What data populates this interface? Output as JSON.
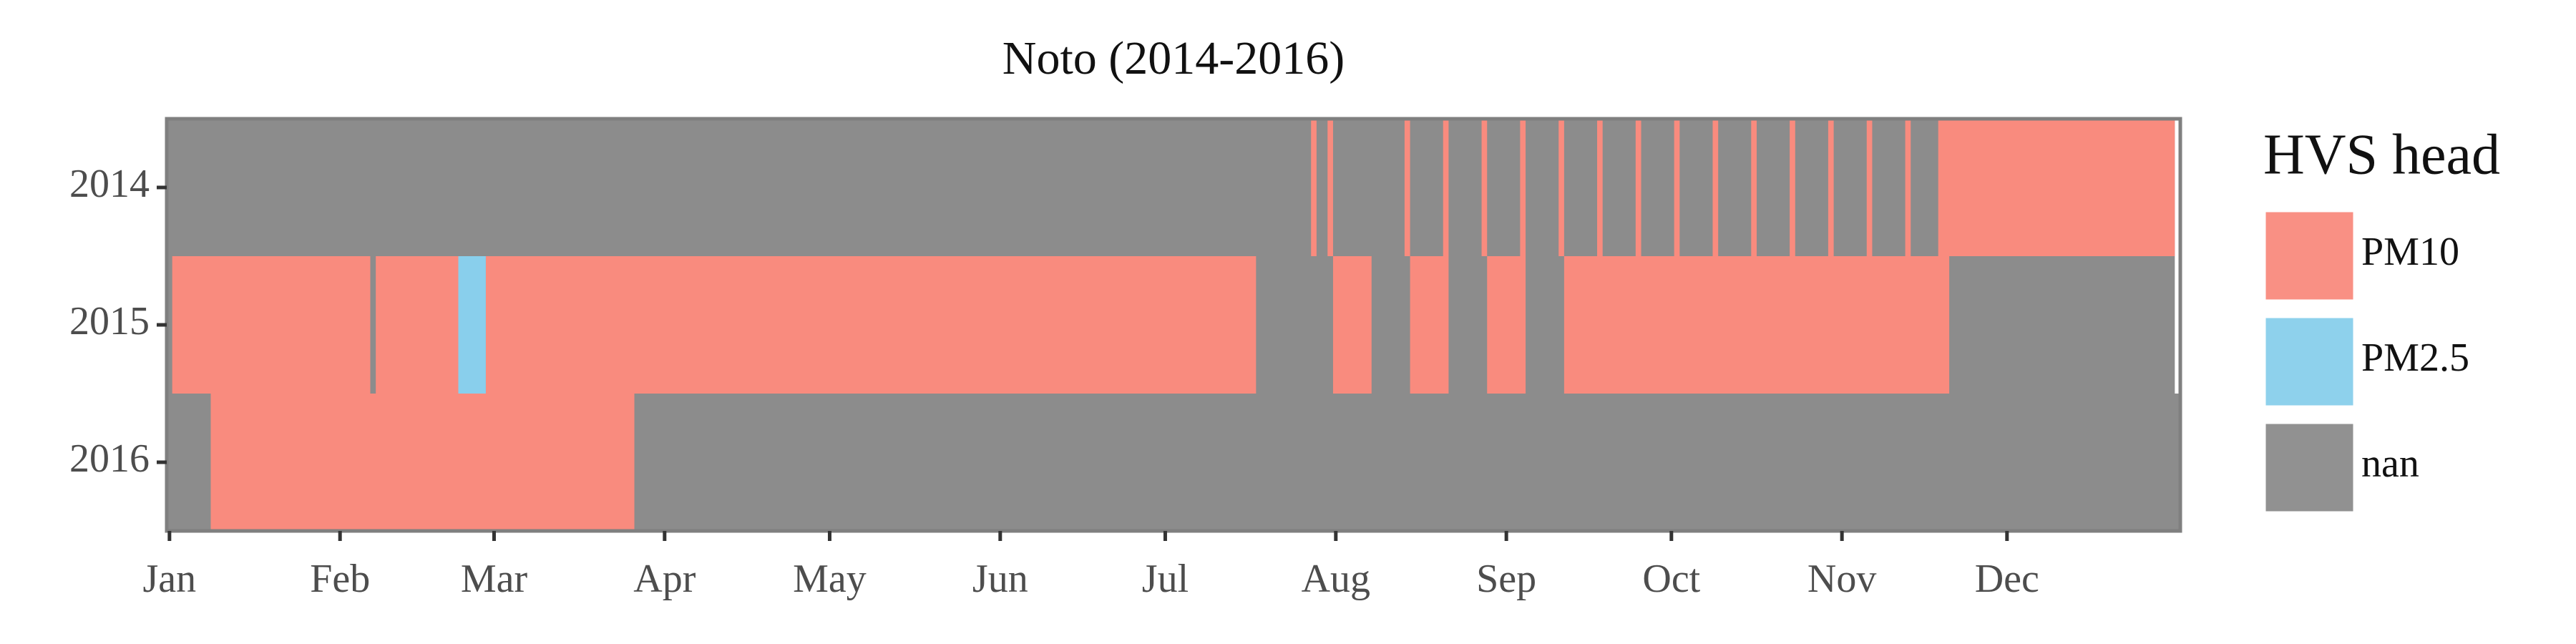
{
  "chart_data": {
    "type": "timeline",
    "title": "Noto (2014-2016)",
    "categories": [
      "2014",
      "2015",
      "2016"
    ],
    "xlim": [
      0.5,
      366.5
    ],
    "xticks": [
      {
        "value": 1,
        "label": "Jan"
      },
      {
        "value": 32,
        "label": "Feb"
      },
      {
        "value": 60,
        "label": "Mar"
      },
      {
        "value": 91,
        "label": "Apr"
      },
      {
        "value": 121,
        "label": "May"
      },
      {
        "value": 152,
        "label": "Jun"
      },
      {
        "value": 182,
        "label": "Jul"
      },
      {
        "value": 213,
        "label": "Aug"
      },
      {
        "value": 244,
        "label": "Sep"
      },
      {
        "value": 274,
        "label": "Oct"
      },
      {
        "value": 305,
        "label": "Nov"
      },
      {
        "value": 335,
        "label": "Dec"
      }
    ],
    "legend_title": "HVS head",
    "series": [
      {
        "name": "nan",
        "color": "#8c8c8c",
        "rows": [
          [
            [
              1,
              365
            ]
          ],
          [
            [
              1,
              365
            ]
          ],
          [
            [
              1,
              366
            ]
          ]
        ]
      },
      {
        "name": "PM10",
        "color": "#f98b7e",
        "rows": [
          [
            [
              209,
              209
            ],
            [
              212,
              212
            ],
            [
              226,
              226
            ],
            [
              233,
              233
            ],
            [
              240,
              240
            ],
            [
              247,
              247
            ],
            [
              254,
              254
            ],
            [
              261,
              261
            ],
            [
              268,
              268
            ],
            [
              275,
              275
            ],
            [
              282,
              282
            ],
            [
              289,
              289
            ],
            [
              296,
              296
            ],
            [
              303,
              303
            ],
            [
              310,
              310
            ],
            [
              317,
              317
            ],
            [
              323,
              365
            ]
          ],
          [
            [
              2,
              37
            ],
            [
              39,
              53
            ],
            [
              59,
              198
            ],
            [
              213,
              219
            ],
            [
              227,
              233
            ],
            [
              241,
              247
            ],
            [
              255,
              324
            ]
          ],
          [
            [
              9,
              85
            ]
          ]
        ]
      },
      {
        "name": "PM2.5",
        "color": "#89cfec",
        "rows": [
          [],
          [
            [
              54,
              58
            ]
          ],
          []
        ]
      }
    ],
    "legend_order": [
      1,
      2,
      0
    ]
  }
}
